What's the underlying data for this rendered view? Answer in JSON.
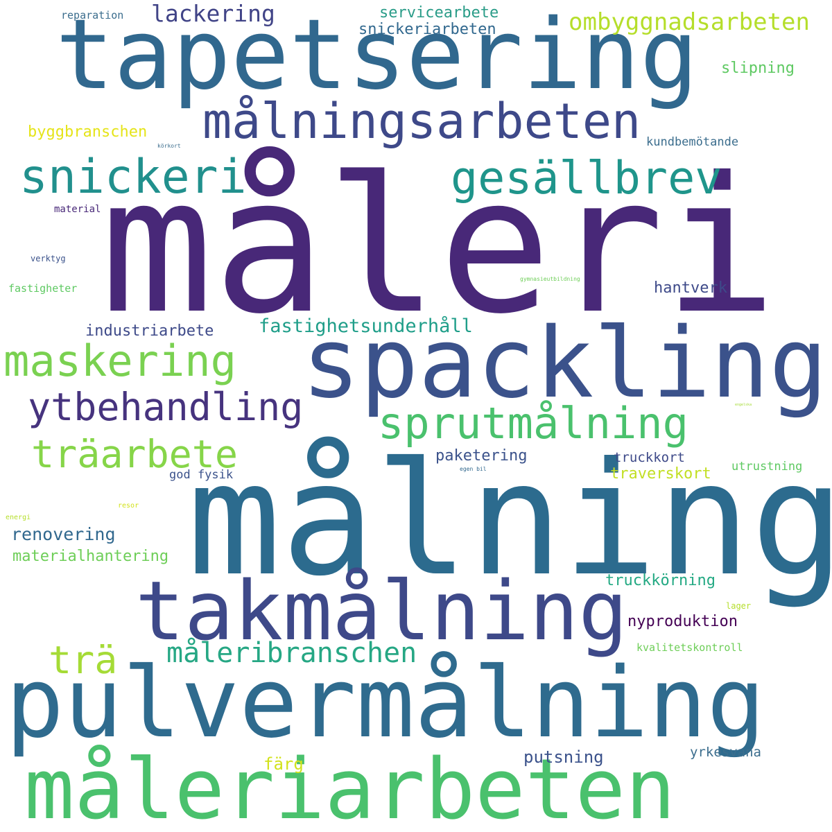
{
  "words": [
    {
      "text": "måleri",
      "color": "#482878"
    },
    {
      "text": "målning",
      "color": "#2c6b8e"
    },
    {
      "text": "tapetsering",
      "color": "#31688e"
    },
    {
      "text": "spackling",
      "color": "#3b528b"
    },
    {
      "text": "pulvermålning",
      "color": "#2f6b8e"
    },
    {
      "text": "måleriarbeten",
      "color": "#4ac16d"
    },
    {
      "text": "takmålning",
      "color": "#3e4989"
    },
    {
      "text": "målningsarbeten",
      "color": "#3e4989"
    },
    {
      "text": "snickeri",
      "color": "#21908d"
    },
    {
      "text": "gesällbrev",
      "color": "#1f958b"
    },
    {
      "text": "maskering",
      "color": "#7ad151"
    },
    {
      "text": "sprutmålning",
      "color": "#4ac16d"
    },
    {
      "text": "ytbehandling",
      "color": "#46337e"
    },
    {
      "text": "träarbete",
      "color": "#86d549"
    },
    {
      "text": "trä",
      "color": "#a5db36"
    },
    {
      "text": "måleribranschen",
      "color": "#26a784"
    },
    {
      "text": "lackering",
      "color": "#414487"
    },
    {
      "text": "ombyggnadsarbeten",
      "color": "#b5de2b"
    },
    {
      "text": "servicearbete",
      "color": "#2a9c88"
    },
    {
      "text": "snickeriarbeten",
      "color": "#31688e"
    },
    {
      "text": "slipning",
      "color": "#5ec962"
    },
    {
      "text": "byggbranschen",
      "color": "#e5e419"
    },
    {
      "text": "kundbemötande",
      "color": "#3b6d8d"
    },
    {
      "text": "hantverk",
      "color": "#3e4a89"
    },
    {
      "text": "fastighetsunderhåll",
      "color": "#1f9e89"
    },
    {
      "text": "industriarbete",
      "color": "#3e4a89"
    },
    {
      "text": "paketering",
      "color": "#3b528b"
    },
    {
      "text": "truckkort",
      "color": "#3e4a89"
    },
    {
      "text": "traverskort",
      "color": "#c2df23"
    },
    {
      "text": "god fysik",
      "color": "#3b528b"
    },
    {
      "text": "renovering",
      "color": "#31688e"
    },
    {
      "text": "materialhantering",
      "color": "#6ece58"
    },
    {
      "text": "truckkörning",
      "color": "#23a983"
    },
    {
      "text": "nyproduktion",
      "color": "#440154"
    },
    {
      "text": "färg",
      "color": "#d2e21b"
    },
    {
      "text": "putsning",
      "color": "#3b528b"
    },
    {
      "text": "yrkesvana",
      "color": "#3b6d8d"
    },
    {
      "text": "utrustning",
      "color": "#5ec962"
    },
    {
      "text": "kvalitetskontroll",
      "color": "#6ece58"
    },
    {
      "text": "lager",
      "color": "#b5de2b"
    },
    {
      "text": "reparation",
      "color": "#3b6d8d"
    },
    {
      "text": "material",
      "color": "#482878"
    },
    {
      "text": "verktyg",
      "color": "#3b528b"
    },
    {
      "text": "fastigheter",
      "color": "#5ec962"
    },
    {
      "text": "körkort",
      "color": "#3b6d8d"
    },
    {
      "text": "gymnasieutbildning",
      "color": "#6ece58"
    },
    {
      "text": "egen bil",
      "color": "#31688e"
    },
    {
      "text": "resor",
      "color": "#d2e21b"
    },
    {
      "text": "energi",
      "color": "#b5de2b"
    },
    {
      "text": "engelska",
      "color": "#a5db36"
    }
  ]
}
